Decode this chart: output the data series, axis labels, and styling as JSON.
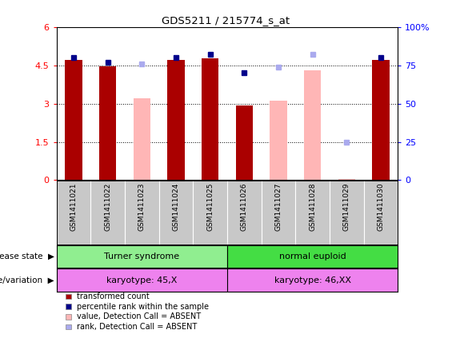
{
  "title": "GDS5211 / 215774_s_at",
  "samples": [
    "GSM1411021",
    "GSM1411022",
    "GSM1411023",
    "GSM1411024",
    "GSM1411025",
    "GSM1411026",
    "GSM1411027",
    "GSM1411028",
    "GSM1411029",
    "GSM1411030"
  ],
  "transformed_count": [
    4.7,
    4.45,
    null,
    4.7,
    4.78,
    2.92,
    null,
    null,
    null,
    4.7
  ],
  "percentile_rank": [
    80,
    77,
    null,
    80,
    82,
    70,
    null,
    null,
    null,
    80
  ],
  "absent_value": [
    null,
    null,
    3.2,
    null,
    null,
    null,
    3.1,
    4.3,
    0.05,
    null
  ],
  "absent_rank": [
    null,
    null,
    76,
    null,
    null,
    null,
    74,
    82,
    25,
    null
  ],
  "ylim_left": [
    0,
    6
  ],
  "ylim_right": [
    0,
    100
  ],
  "yticks_left": [
    0,
    1.5,
    3.0,
    4.5,
    6
  ],
  "yticks_left_labels": [
    "0",
    "1.5",
    "3",
    "4.5",
    "6"
  ],
  "yticks_right": [
    0,
    25,
    50,
    75,
    100
  ],
  "yticks_right_labels": [
    "0",
    "25",
    "50",
    "75",
    "100%"
  ],
  "grid_lines": [
    1.5,
    3.0,
    4.5
  ],
  "bar_color_present": "#aa0000",
  "bar_color_absent": "#ffb6b6",
  "dot_color_present": "#00008b",
  "dot_color_absent": "#aaaaee",
  "disease_color_1": "#90ee90",
  "disease_color_2": "#44dd44",
  "genotype_color": "#ee82ee",
  "bg_color_plot": "#ffffff",
  "bg_color_xaxis": "#c8c8c8",
  "legend_items": [
    {
      "label": "transformed count",
      "color": "#aa0000"
    },
    {
      "label": "percentile rank within the sample",
      "color": "#00008b"
    },
    {
      "label": "value, Detection Call = ABSENT",
      "color": "#ffb6b6"
    },
    {
      "label": "rank, Detection Call = ABSENT",
      "color": "#aaaaee"
    }
  ]
}
